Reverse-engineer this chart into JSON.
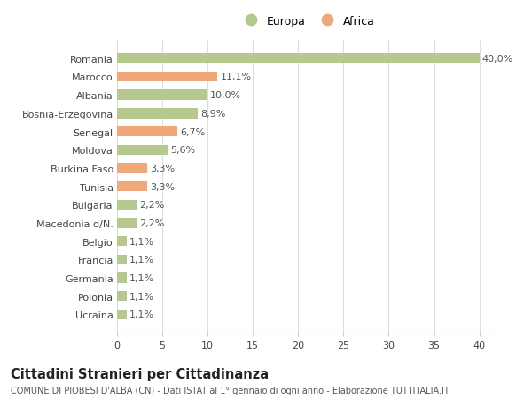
{
  "countries": [
    "Romania",
    "Marocco",
    "Albania",
    "Bosnia-Erzegovina",
    "Senegal",
    "Moldova",
    "Burkina Faso",
    "Tunisia",
    "Bulgaria",
    "Macedonia d/N.",
    "Belgio",
    "Francia",
    "Germania",
    "Polonia",
    "Ucraina"
  ],
  "values": [
    40.0,
    11.1,
    10.0,
    8.9,
    6.7,
    5.6,
    3.3,
    3.3,
    2.2,
    2.2,
    1.1,
    1.1,
    1.1,
    1.1,
    1.1
  ],
  "labels": [
    "40,0%",
    "11,1%",
    "10,0%",
    "8,9%",
    "6,7%",
    "5,6%",
    "3,3%",
    "3,3%",
    "2,2%",
    "2,2%",
    "1,1%",
    "1,1%",
    "1,1%",
    "1,1%",
    "1,1%"
  ],
  "continent": [
    "Europa",
    "Africa",
    "Europa",
    "Europa",
    "Africa",
    "Europa",
    "Africa",
    "Africa",
    "Europa",
    "Europa",
    "Europa",
    "Europa",
    "Europa",
    "Europa",
    "Europa"
  ],
  "color_europa": "#b5c98e",
  "color_africa": "#f0a878",
  "legend_europa": "Europa",
  "legend_africa": "Africa",
  "title": "Cittadini Stranieri per Cittadinanza",
  "subtitle": "COMUNE DI PIOBESI D'ALBA (CN) - Dati ISTAT al 1° gennaio di ogni anno - Elaborazione TUTTITALIA.IT",
  "xlim": [
    0,
    42
  ],
  "xticks": [
    0,
    5,
    10,
    15,
    20,
    25,
    30,
    35,
    40
  ],
  "bg_color": "#ffffff",
  "bar_height": 0.55,
  "label_fontsize": 8.0,
  "tick_fontsize": 8.0,
  "title_fontsize": 10.5,
  "subtitle_fontsize": 7.0
}
